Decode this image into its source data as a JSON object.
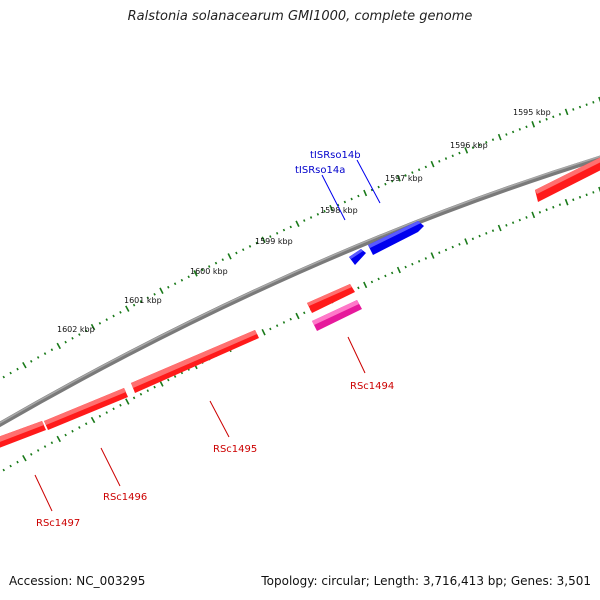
{
  "title": "Ralstonia solanacearum GMI1000, complete genome",
  "footer": {
    "accession": "Accession: NC_003295",
    "summary": "Topology: circular; Length: 3,716,413 bp; Genes: 3,501"
  },
  "colors": {
    "backbone": "#808080",
    "ticks": "#1a7a1a",
    "cds": "#ff1a1a",
    "misc_feature": "#e6199b",
    "trna": "#0000ee",
    "cds_label": "#cc0000",
    "trna_label": "#0000cc"
  },
  "scale_ticks": [
    "1595 kbp",
    "1596 kbp",
    "1597 kbp",
    "1598 kbp",
    "1599 kbp",
    "1600 kbp",
    "1601 kbp",
    "1602 kbp"
  ],
  "features": [
    {
      "label": "tISRso14b",
      "type": "tRNA",
      "strand": "+"
    },
    {
      "label": "tISRso14a",
      "type": "tRNA",
      "strand": "+"
    },
    {
      "label": "RSc1494",
      "type": "CDS",
      "strand": "-"
    },
    {
      "label": "RSc1495",
      "type": "CDS",
      "strand": "-"
    },
    {
      "label": "RSc1496",
      "type": "CDS",
      "strand": "-"
    },
    {
      "label": "RSc1497",
      "type": "CDS",
      "strand": "-"
    }
  ]
}
